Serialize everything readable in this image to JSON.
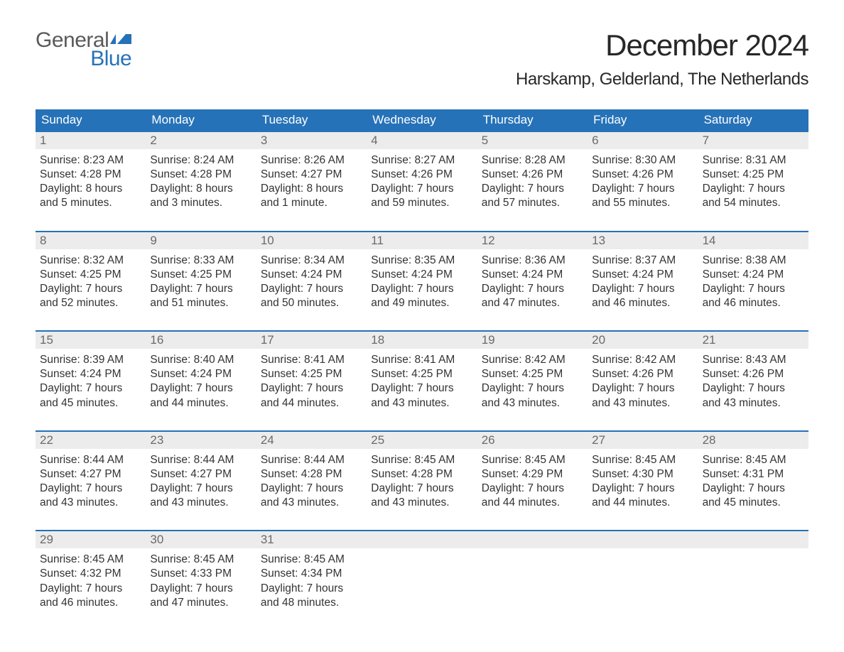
{
  "logo": {
    "text_general": "General",
    "text_blue": "Blue",
    "icon_color": "#2672b8"
  },
  "title": "December 2024",
  "location": "Harskamp, Gelderland, The Netherlands",
  "colors": {
    "header_bg": "#2672b8",
    "header_text": "#ffffff",
    "daynum_bg": "#ececec",
    "daynum_text": "#6a6a6a",
    "body_text": "#333333",
    "week_border": "#2672b8",
    "page_bg": "#ffffff"
  },
  "typography": {
    "title_fontsize": 42,
    "location_fontsize": 24,
    "weekday_fontsize": 17,
    "daynum_fontsize": 17,
    "cell_fontsize": 15.5
  },
  "weekdays": [
    "Sunday",
    "Monday",
    "Tuesday",
    "Wednesday",
    "Thursday",
    "Friday",
    "Saturday"
  ],
  "weeks": [
    [
      {
        "n": "1",
        "sunrise": "Sunrise: 8:23 AM",
        "sunset": "Sunset: 4:28 PM",
        "day1": "Daylight: 8 hours",
        "day2": "and 5 minutes."
      },
      {
        "n": "2",
        "sunrise": "Sunrise: 8:24 AM",
        "sunset": "Sunset: 4:28 PM",
        "day1": "Daylight: 8 hours",
        "day2": "and 3 minutes."
      },
      {
        "n": "3",
        "sunrise": "Sunrise: 8:26 AM",
        "sunset": "Sunset: 4:27 PM",
        "day1": "Daylight: 8 hours",
        "day2": "and 1 minute."
      },
      {
        "n": "4",
        "sunrise": "Sunrise: 8:27 AM",
        "sunset": "Sunset: 4:26 PM",
        "day1": "Daylight: 7 hours",
        "day2": "and 59 minutes."
      },
      {
        "n": "5",
        "sunrise": "Sunrise: 8:28 AM",
        "sunset": "Sunset: 4:26 PM",
        "day1": "Daylight: 7 hours",
        "day2": "and 57 minutes."
      },
      {
        "n": "6",
        "sunrise": "Sunrise: 8:30 AM",
        "sunset": "Sunset: 4:26 PM",
        "day1": "Daylight: 7 hours",
        "day2": "and 55 minutes."
      },
      {
        "n": "7",
        "sunrise": "Sunrise: 8:31 AM",
        "sunset": "Sunset: 4:25 PM",
        "day1": "Daylight: 7 hours",
        "day2": "and 54 minutes."
      }
    ],
    [
      {
        "n": "8",
        "sunrise": "Sunrise: 8:32 AM",
        "sunset": "Sunset: 4:25 PM",
        "day1": "Daylight: 7 hours",
        "day2": "and 52 minutes."
      },
      {
        "n": "9",
        "sunrise": "Sunrise: 8:33 AM",
        "sunset": "Sunset: 4:25 PM",
        "day1": "Daylight: 7 hours",
        "day2": "and 51 minutes."
      },
      {
        "n": "10",
        "sunrise": "Sunrise: 8:34 AM",
        "sunset": "Sunset: 4:24 PM",
        "day1": "Daylight: 7 hours",
        "day2": "and 50 minutes."
      },
      {
        "n": "11",
        "sunrise": "Sunrise: 8:35 AM",
        "sunset": "Sunset: 4:24 PM",
        "day1": "Daylight: 7 hours",
        "day2": "and 49 minutes."
      },
      {
        "n": "12",
        "sunrise": "Sunrise: 8:36 AM",
        "sunset": "Sunset: 4:24 PM",
        "day1": "Daylight: 7 hours",
        "day2": "and 47 minutes."
      },
      {
        "n": "13",
        "sunrise": "Sunrise: 8:37 AM",
        "sunset": "Sunset: 4:24 PM",
        "day1": "Daylight: 7 hours",
        "day2": "and 46 minutes."
      },
      {
        "n": "14",
        "sunrise": "Sunrise: 8:38 AM",
        "sunset": "Sunset: 4:24 PM",
        "day1": "Daylight: 7 hours",
        "day2": "and 46 minutes."
      }
    ],
    [
      {
        "n": "15",
        "sunrise": "Sunrise: 8:39 AM",
        "sunset": "Sunset: 4:24 PM",
        "day1": "Daylight: 7 hours",
        "day2": "and 45 minutes."
      },
      {
        "n": "16",
        "sunrise": "Sunrise: 8:40 AM",
        "sunset": "Sunset: 4:24 PM",
        "day1": "Daylight: 7 hours",
        "day2": "and 44 minutes."
      },
      {
        "n": "17",
        "sunrise": "Sunrise: 8:41 AM",
        "sunset": "Sunset: 4:25 PM",
        "day1": "Daylight: 7 hours",
        "day2": "and 44 minutes."
      },
      {
        "n": "18",
        "sunrise": "Sunrise: 8:41 AM",
        "sunset": "Sunset: 4:25 PM",
        "day1": "Daylight: 7 hours",
        "day2": "and 43 minutes."
      },
      {
        "n": "19",
        "sunrise": "Sunrise: 8:42 AM",
        "sunset": "Sunset: 4:25 PM",
        "day1": "Daylight: 7 hours",
        "day2": "and 43 minutes."
      },
      {
        "n": "20",
        "sunrise": "Sunrise: 8:42 AM",
        "sunset": "Sunset: 4:26 PM",
        "day1": "Daylight: 7 hours",
        "day2": "and 43 minutes."
      },
      {
        "n": "21",
        "sunrise": "Sunrise: 8:43 AM",
        "sunset": "Sunset: 4:26 PM",
        "day1": "Daylight: 7 hours",
        "day2": "and 43 minutes."
      }
    ],
    [
      {
        "n": "22",
        "sunrise": "Sunrise: 8:44 AM",
        "sunset": "Sunset: 4:27 PM",
        "day1": "Daylight: 7 hours",
        "day2": "and 43 minutes."
      },
      {
        "n": "23",
        "sunrise": "Sunrise: 8:44 AM",
        "sunset": "Sunset: 4:27 PM",
        "day1": "Daylight: 7 hours",
        "day2": "and 43 minutes."
      },
      {
        "n": "24",
        "sunrise": "Sunrise: 8:44 AM",
        "sunset": "Sunset: 4:28 PM",
        "day1": "Daylight: 7 hours",
        "day2": "and 43 minutes."
      },
      {
        "n": "25",
        "sunrise": "Sunrise: 8:45 AM",
        "sunset": "Sunset: 4:28 PM",
        "day1": "Daylight: 7 hours",
        "day2": "and 43 minutes."
      },
      {
        "n": "26",
        "sunrise": "Sunrise: 8:45 AM",
        "sunset": "Sunset: 4:29 PM",
        "day1": "Daylight: 7 hours",
        "day2": "and 44 minutes."
      },
      {
        "n": "27",
        "sunrise": "Sunrise: 8:45 AM",
        "sunset": "Sunset: 4:30 PM",
        "day1": "Daylight: 7 hours",
        "day2": "and 44 minutes."
      },
      {
        "n": "28",
        "sunrise": "Sunrise: 8:45 AM",
        "sunset": "Sunset: 4:31 PM",
        "day1": "Daylight: 7 hours",
        "day2": "and 45 minutes."
      }
    ],
    [
      {
        "n": "29",
        "sunrise": "Sunrise: 8:45 AM",
        "sunset": "Sunset: 4:32 PM",
        "day1": "Daylight: 7 hours",
        "day2": "and 46 minutes."
      },
      {
        "n": "30",
        "sunrise": "Sunrise: 8:45 AM",
        "sunset": "Sunset: 4:33 PM",
        "day1": "Daylight: 7 hours",
        "day2": "and 47 minutes."
      },
      {
        "n": "31",
        "sunrise": "Sunrise: 8:45 AM",
        "sunset": "Sunset: 4:34 PM",
        "day1": "Daylight: 7 hours",
        "day2": "and 48 minutes."
      },
      null,
      null,
      null,
      null
    ]
  ]
}
